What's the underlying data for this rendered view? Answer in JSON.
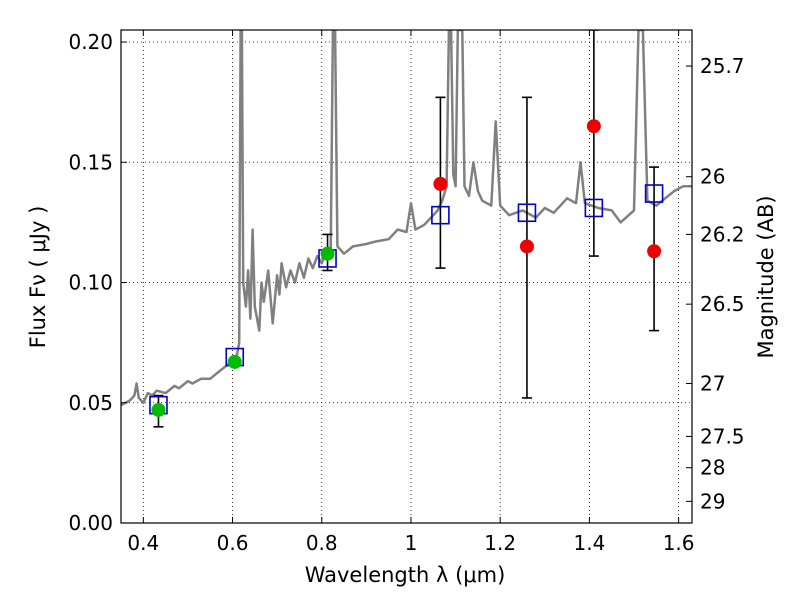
{
  "chart_data": {
    "type": "scatter",
    "xlabel": "Wavelength  λ (μm)",
    "ylabel": "Flux  Fν  ( μJy )",
    "y2label": "Magnitude (AB)",
    "xlim": [
      0.35,
      1.63
    ],
    "ylim": [
      0.0,
      0.205
    ],
    "xticks": [
      0.4,
      0.6,
      0.8,
      1.0,
      1.2,
      1.4,
      1.6
    ],
    "xtick_labels": [
      "0.4",
      "0.6",
      "0.8",
      "1",
      "1.2",
      "1.4",
      "1.6"
    ],
    "yticks": [
      0.0,
      0.05,
      0.1,
      0.15,
      0.2
    ],
    "ytick_labels": [
      "0.00",
      "0.05",
      "0.10",
      "0.15",
      "0.20"
    ],
    "y2ticks": [
      {
        "label": "25.7",
        "flux": 0.19
      },
      {
        "label": "26",
        "flux": 0.144
      },
      {
        "label": "26.2",
        "flux": 0.12
      },
      {
        "label": "26.5",
        "flux": 0.091
      },
      {
        "label": "27",
        "flux": 0.058
      },
      {
        "label": "27.5",
        "flux": 0.036
      },
      {
        "label": "28",
        "flux": 0.023
      },
      {
        "label": "29",
        "flux": 0.009
      }
    ],
    "grid": true,
    "colors": {
      "spectrum": "#808080",
      "model": "#0000cc",
      "detection": "#00bb00",
      "upper": "#ee0000",
      "errorbar": "#000000"
    },
    "series": [
      {
        "style": "line",
        "points": [
          [
            0.35,
            0.049
          ],
          [
            0.37,
            0.051
          ],
          [
            0.38,
            0.053
          ],
          [
            0.385,
            0.058
          ],
          [
            0.39,
            0.052
          ],
          [
            0.4,
            0.05
          ],
          [
            0.41,
            0.054
          ],
          [
            0.42,
            0.053
          ],
          [
            0.43,
            0.055
          ],
          [
            0.45,
            0.054
          ],
          [
            0.47,
            0.057
          ],
          [
            0.48,
            0.056
          ],
          [
            0.5,
            0.059
          ],
          [
            0.51,
            0.058
          ],
          [
            0.53,
            0.06
          ],
          [
            0.55,
            0.06
          ],
          [
            0.57,
            0.063
          ],
          [
            0.59,
            0.066
          ],
          [
            0.6,
            0.068
          ],
          [
            0.61,
            0.07
          ],
          [
            0.615,
            0.075
          ],
          [
            0.618,
            0.205
          ],
          [
            0.621,
            0.205
          ],
          [
            0.624,
            0.1
          ],
          [
            0.63,
            0.09
          ],
          [
            0.635,
            0.105
          ],
          [
            0.64,
            0.085
          ],
          [
            0.645,
            0.122
          ],
          [
            0.65,
            0.09
          ],
          [
            0.66,
            0.08
          ],
          [
            0.665,
            0.1
          ],
          [
            0.67,
            0.092
          ],
          [
            0.68,
            0.105
          ],
          [
            0.69,
            0.083
          ],
          [
            0.7,
            0.103
          ],
          [
            0.705,
            0.095
          ],
          [
            0.71,
            0.108
          ],
          [
            0.72,
            0.098
          ],
          [
            0.73,
            0.105
          ],
          [
            0.74,
            0.1
          ],
          [
            0.75,
            0.108
          ],
          [
            0.76,
            0.102
          ],
          [
            0.77,
            0.11
          ],
          [
            0.78,
            0.106
          ],
          [
            0.79,
            0.111
          ],
          [
            0.8,
            0.108
          ],
          [
            0.81,
            0.113
          ],
          [
            0.82,
            0.112
          ],
          [
            0.825,
            0.205
          ],
          [
            0.83,
            0.205
          ],
          [
            0.835,
            0.115
          ],
          [
            0.85,
            0.112
          ],
          [
            0.87,
            0.115
          ],
          [
            0.9,
            0.116
          ],
          [
            0.92,
            0.117
          ],
          [
            0.95,
            0.118
          ],
          [
            0.97,
            0.122
          ],
          [
            0.99,
            0.121
          ],
          [
            1.0,
            0.133
          ],
          [
            1.01,
            0.122
          ],
          [
            1.03,
            0.124
          ],
          [
            1.05,
            0.128
          ],
          [
            1.06,
            0.13
          ],
          [
            1.07,
            0.134
          ],
          [
            1.08,
            0.14
          ],
          [
            1.085,
            0.205
          ],
          [
            1.09,
            0.205
          ],
          [
            1.095,
            0.145
          ],
          [
            1.1,
            0.14
          ],
          [
            1.105,
            0.205
          ],
          [
            1.115,
            0.205
          ],
          [
            1.12,
            0.14
          ],
          [
            1.13,
            0.136
          ],
          [
            1.14,
            0.15
          ],
          [
            1.15,
            0.138
          ],
          [
            1.16,
            0.134
          ],
          [
            1.18,
            0.132
          ],
          [
            1.19,
            0.167
          ],
          [
            1.2,
            0.132
          ],
          [
            1.22,
            0.128
          ],
          [
            1.25,
            0.13
          ],
          [
            1.28,
            0.127
          ],
          [
            1.3,
            0.131
          ],
          [
            1.32,
            0.129
          ],
          [
            1.35,
            0.135
          ],
          [
            1.37,
            0.133
          ],
          [
            1.38,
            0.15
          ],
          [
            1.39,
            0.133
          ],
          [
            1.42,
            0.131
          ],
          [
            1.45,
            0.13
          ],
          [
            1.47,
            0.125
          ],
          [
            1.5,
            0.13
          ],
          [
            1.51,
            0.205
          ],
          [
            1.52,
            0.205
          ],
          [
            1.53,
            0.134
          ],
          [
            1.55,
            0.132
          ],
          [
            1.57,
            0.135
          ],
          [
            1.59,
            0.138
          ],
          [
            1.61,
            0.14
          ],
          [
            1.63,
            0.14
          ]
        ]
      },
      {
        "style": "open-square",
        "points": [
          [
            0.434,
            0.049
          ],
          [
            0.605,
            0.069
          ],
          [
            0.813,
            0.11
          ],
          [
            1.066,
            0.128
          ],
          [
            1.26,
            0.129
          ],
          [
            1.41,
            0.131
          ],
          [
            1.545,
            0.137
          ]
        ]
      },
      {
        "style": "filled-circle",
        "color_key": "detection",
        "points": [
          [
            0.434,
            0.047
          ],
          [
            0.605,
            0.067
          ],
          [
            0.813,
            0.112
          ]
        ],
        "errors": [
          [
            0.04,
            0.053
          ],
          null,
          [
            0.105,
            0.12
          ]
        ]
      },
      {
        "style": "filled-circle",
        "color_key": "upper",
        "points": [
          [
            1.066,
            0.141
          ],
          [
            1.26,
            0.115
          ],
          [
            1.41,
            0.165
          ],
          [
            1.545,
            0.113
          ]
        ],
        "errors": [
          [
            0.106,
            0.177
          ],
          [
            0.052,
            0.177
          ],
          [
            0.111,
            0.205
          ],
          [
            0.08,
            0.148
          ]
        ]
      }
    ]
  }
}
